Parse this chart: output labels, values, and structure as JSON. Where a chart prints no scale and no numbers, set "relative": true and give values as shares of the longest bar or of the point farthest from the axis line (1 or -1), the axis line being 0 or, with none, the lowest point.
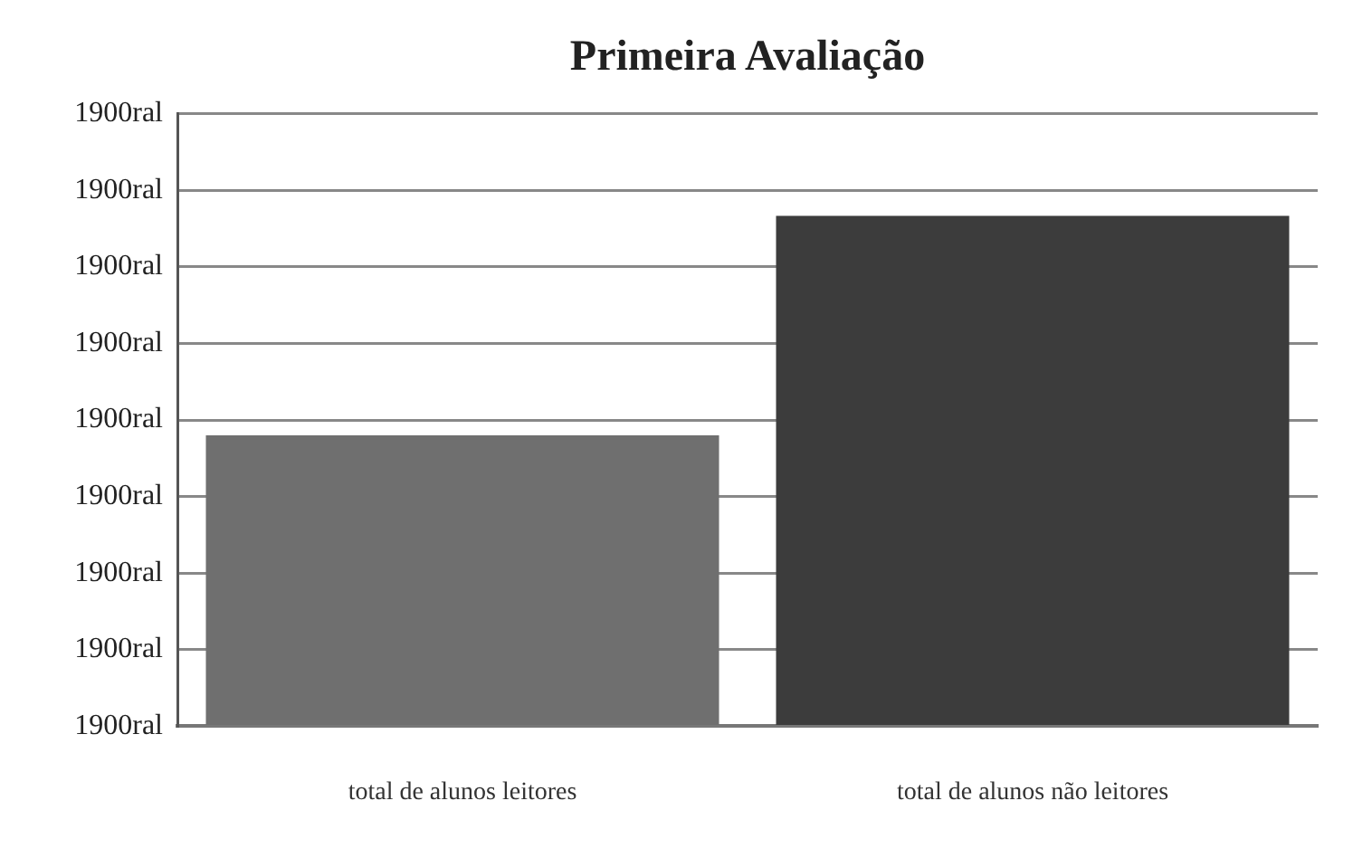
{
  "chart_data": {
    "type": "bar",
    "title": "Primeira Avaliação",
    "categories": [
      "total de alunos leitores",
      "total de alunos não leitores"
    ],
    "values": [
      0.57,
      1
    ],
    "colors": [
      "#6f6f6f",
      "#3c3c3c"
    ],
    "relative": true,
    "annotations": [
      "1900ral",
      "1900ral",
      "1900ral",
      "1900ral",
      "1900ral",
      "1900ral",
      "1900ral",
      "1900ral",
      "1900ral"
    ],
    "grid": true,
    "legend": false
  }
}
